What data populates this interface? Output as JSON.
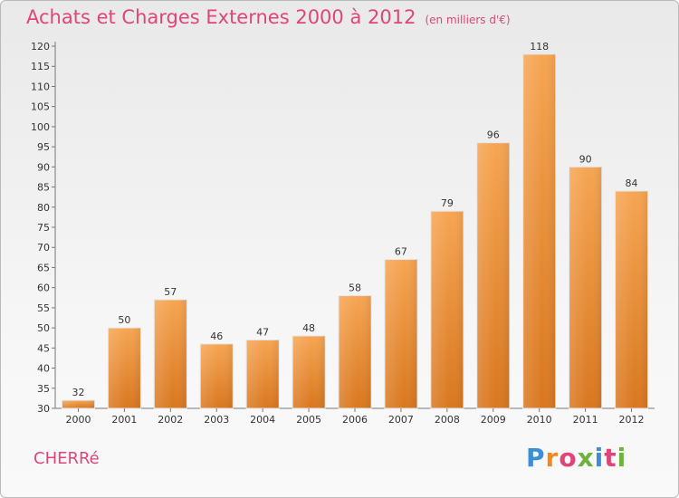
{
  "header": {
    "title": "Achats et Charges Externes 2000 à 2012",
    "unit": "(en milliers d'€)"
  },
  "footer": {
    "commune": "CHERRé",
    "logo": "Proxiti"
  },
  "colors": {
    "bar": "#f0922e",
    "title": "#e0457a",
    "axis": "#666666"
  },
  "chart_data": {
    "type": "bar",
    "title": "Achats et Charges Externes 2000 à 2012",
    "subtitle": "(en milliers d'€)",
    "xlabel": "",
    "ylabel": "",
    "categories": [
      "2000",
      "2001",
      "2002",
      "2003",
      "2004",
      "2005",
      "2006",
      "2007",
      "2008",
      "2009",
      "2010",
      "2011",
      "2012"
    ],
    "values": [
      32,
      50,
      57,
      46,
      47,
      48,
      58,
      67,
      79,
      96,
      118,
      90,
      84
    ],
    "ylim": [
      30,
      120
    ],
    "yticks": [
      30,
      35,
      40,
      45,
      50,
      55,
      60,
      65,
      70,
      75,
      80,
      85,
      90,
      95,
      100,
      105,
      110,
      115,
      120
    ],
    "grid": false,
    "legend": "none"
  }
}
